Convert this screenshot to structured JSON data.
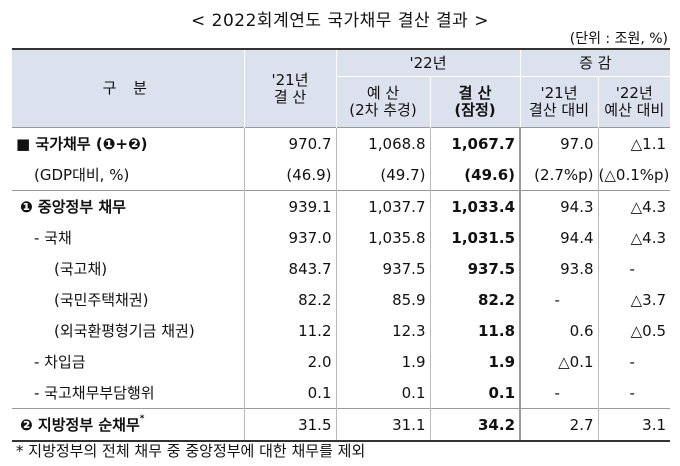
{
  "title": "< 2022회계연도 국가채무 결산 결과 >",
  "unit": "(단위 : 조원, %)",
  "header": {
    "gubun": "구  분",
    "y21_line1": "'21년",
    "y21_line2": "결 산",
    "y22": "'22년",
    "change": "증 감",
    "budget_line1": "예 산",
    "budget_line2": "(2차 추경)",
    "settle_line1": "결 산",
    "settle_line2": "(잠정)",
    "vs21_line1": "'21년",
    "vs21_line2": "결산 대비",
    "vs22_line1": "'22년",
    "vs22_line2": "예산 대비"
  },
  "rows": [
    {
      "label": "■ 국가채무 (❶+❷)",
      "y21": "970.7",
      "budget": "1,068.8",
      "settle": "1,067.7",
      "vs21": "97.0",
      "vs22": "△1.1"
    },
    {
      "label": "(GDP대비, %)",
      "y21": "(46.9)",
      "budget": "(49.7)",
      "settle": "(49.6)",
      "vs21": "(2.7%p)",
      "vs22": "(△0.1%p)"
    },
    {
      "label": "❶ 중앙정부 채무",
      "y21": "939.1",
      "budget": "1,037.7",
      "settle": "1,033.4",
      "vs21": "94.3",
      "vs22": "△4.3"
    },
    {
      "label": "- 국채",
      "y21": "937.0",
      "budget": "1,035.8",
      "settle": "1,031.5",
      "vs21": "94.4",
      "vs22": "△4.3"
    },
    {
      "label": "(국고채)",
      "y21": "843.7",
      "budget": "937.5",
      "settle": "937.5",
      "vs21": "93.8",
      "vs22": "-"
    },
    {
      "label": "(국민주택채권)",
      "y21": "82.2",
      "budget": "85.9",
      "settle": "82.2",
      "vs21": "-",
      "vs22": "△3.7"
    },
    {
      "label": "(외국환평형기금 채권)",
      "y21": "11.2",
      "budget": "12.3",
      "settle": "11.8",
      "vs21": "0.6",
      "vs22": "△0.5"
    },
    {
      "label": "- 차입금",
      "y21": "2.0",
      "budget": "1.9",
      "settle": "1.9",
      "vs21": "△0.1",
      "vs22": "-"
    },
    {
      "label": "- 국고채무부담행위",
      "y21": "0.1",
      "budget": "0.1",
      "settle": "0.1",
      "vs21": "-",
      "vs22": "-"
    },
    {
      "label": "❷ 지방정부 순채무",
      "label_sup": "*",
      "y21": "31.5",
      "budget": "31.1",
      "settle": "34.2",
      "vs21": "2.7",
      "vs22": "3.1"
    }
  ],
  "footnote": "* 지방정부의 전체 채무 중 중앙정부에 대한 채무를 제외"
}
